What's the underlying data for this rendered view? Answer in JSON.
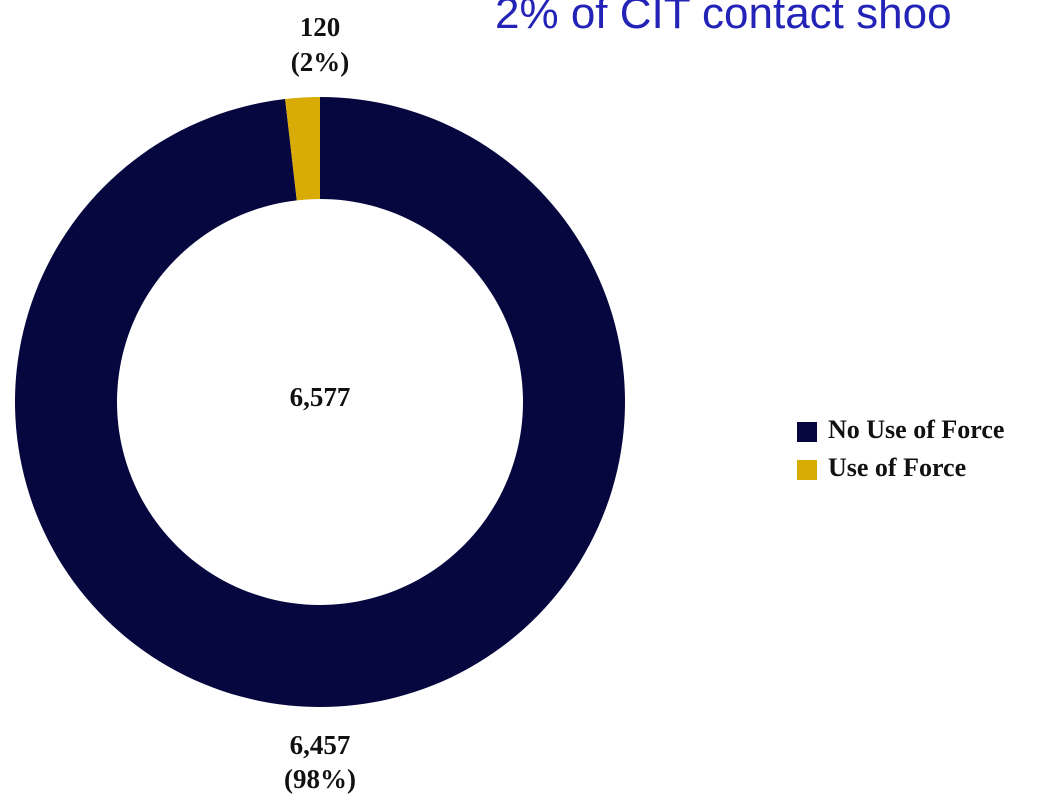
{
  "chart_data": {
    "type": "donut",
    "title": "2% of CIT contact shoo",
    "categories": [
      "No Use of Force",
      "Use of Force"
    ],
    "values": [
      6457,
      120
    ],
    "value_labels": [
      "6,457",
      "120"
    ],
    "percentages": [
      98,
      2
    ],
    "percentage_labels": [
      "(98%)",
      "(2%)"
    ],
    "colors": [
      "#07073f",
      "#d9ab05"
    ],
    "total": 6577,
    "total_label": "6,577",
    "legend": "right"
  }
}
